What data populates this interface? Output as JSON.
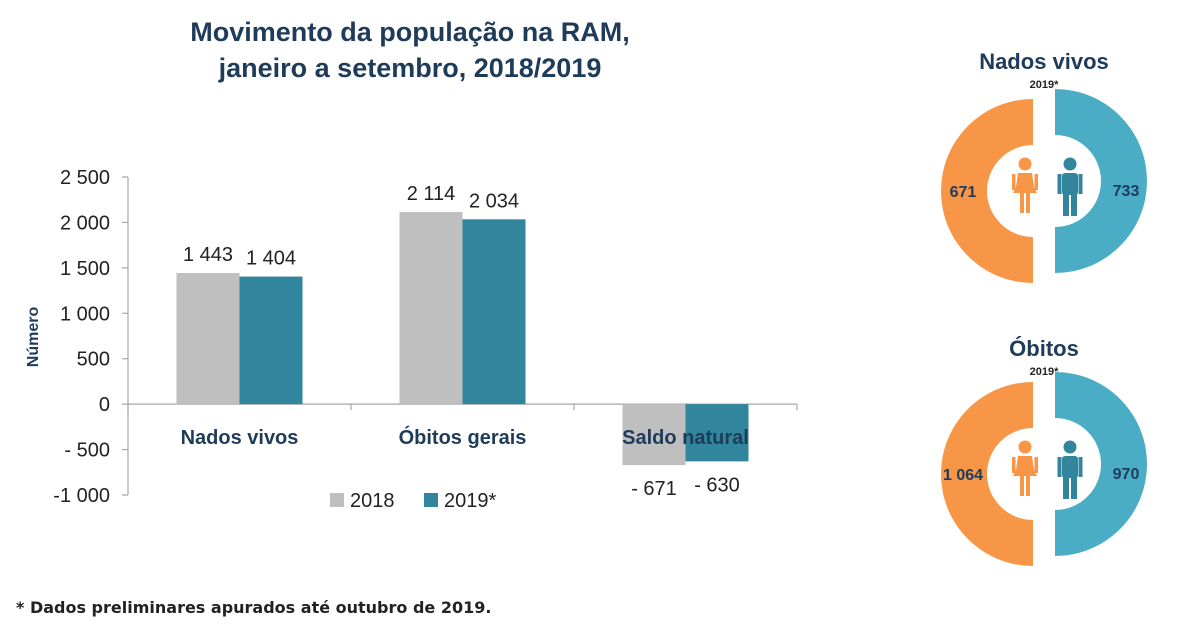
{
  "chart_data": [
    {
      "type": "bar",
      "title_lines": [
        "Movimento da população na RAM,",
        "janeiro a setembro, 2018/2019"
      ],
      "ylabel": "Número",
      "xlabel": "",
      "categories": [
        "Nados vivos",
        "Óbitos gerais",
        "Saldo natural"
      ],
      "series": [
        {
          "name": "2018",
          "values": [
            1443,
            2114,
            -671
          ],
          "labels": [
            "1 443",
            "2 114",
            "- 671"
          ],
          "color": "#bfbfbf"
        },
        {
          "name": "2019*",
          "values": [
            1404,
            2034,
            -630
          ],
          "labels": [
            "1 404",
            "2 034",
            "- 630"
          ],
          "color": "#31859c"
        }
      ],
      "ylim": [
        -1000,
        2500
      ],
      "yticks": [
        2500,
        2000,
        1500,
        1000,
        500,
        0,
        -500,
        -1000
      ],
      "ytick_labels": [
        "2 500",
        "2 000",
        "1 500",
        "1 000",
        "500",
        "0",
        "- 500",
        "-1 000"
      ],
      "grid": false,
      "legend": "bottom"
    },
    {
      "type": "pie",
      "title": "Nados vivos",
      "subtitle": "2019*",
      "categories": [
        "female",
        "male"
      ],
      "values": [
        671,
        733
      ],
      "labels": [
        "671",
        "733"
      ],
      "colors": [
        "#f79646",
        "#4bacc6"
      ]
    },
    {
      "type": "pie",
      "title": "Óbitos",
      "subtitle": "2019*",
      "categories": [
        "female",
        "male"
      ],
      "values": [
        1064,
        970
      ],
      "labels": [
        "1 064",
        "970"
      ],
      "colors": [
        "#f79646",
        "#4bacc6"
      ]
    }
  ],
  "icons": {
    "female": "female-person-icon",
    "male": "male-person-icon"
  },
  "footnote": "* Dados preliminares apurados até outubro de 2019."
}
